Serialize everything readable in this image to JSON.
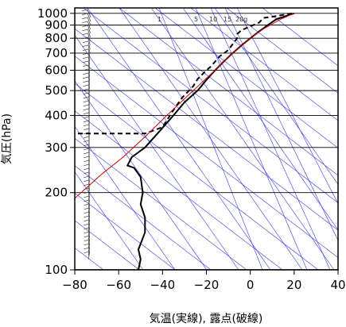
{
  "chart_data": {
    "type": "line",
    "title": "",
    "xlabel": "気温(実線), 露点(破線)",
    "ylabel": "気圧(hPa)",
    "xlim": [
      -80,
      40
    ],
    "ylim": [
      1050,
      100
    ],
    "y_scale": "log",
    "x_ticks": [
      -80,
      -60,
      -40,
      -20,
      0,
      20,
      40
    ],
    "x_tick_labels": [
      "−80",
      "−60",
      "−40",
      "−20",
      "0",
      "20",
      "40"
    ],
    "y_ticks": [
      100,
      200,
      300,
      400,
      500,
      600,
      700,
      800,
      900,
      1000
    ],
    "y_tick_labels": [
      "100",
      "200",
      "300",
      "400",
      "500",
      "600",
      "700",
      "800",
      "900",
      "1000"
    ],
    "mixing_ratio_labels": [
      "1",
      "5",
      "10",
      "15",
      "20g"
    ],
    "grid": true,
    "colors": {
      "temperature": "#000000",
      "dewpoint": "#000000",
      "parcel": "#d00000",
      "reference_lines": "#3a3aee",
      "isobars": "#000000"
    },
    "series": [
      {
        "role": "temperature",
        "style": "solid",
        "points": [
          [
            20,
            1000
          ],
          [
            16,
            975
          ],
          [
            12,
            950
          ],
          [
            8,
            900
          ],
          [
            4,
            850
          ],
          [
            0,
            800
          ],
          [
            -4,
            750
          ],
          [
            -8,
            700
          ],
          [
            -12,
            650
          ],
          [
            -16,
            600
          ],
          [
            -20,
            550
          ],
          [
            -24,
            500
          ],
          [
            -30,
            450
          ],
          [
            -35,
            400
          ],
          [
            -41,
            350
          ],
          [
            -48,
            300
          ],
          [
            -54,
            275
          ],
          [
            -56,
            255
          ],
          [
            -53,
            250
          ],
          [
            -50,
            230
          ],
          [
            -49,
            200
          ],
          [
            -50,
            180
          ],
          [
            -48,
            160
          ],
          [
            -48,
            140
          ],
          [
            -51,
            120
          ],
          [
            -50,
            110
          ],
          [
            -51,
            100
          ]
        ]
      },
      {
        "role": "dewpoint",
        "style": "dashed",
        "points": [
          [
            19,
            1000
          ],
          [
            10,
            970
          ],
          [
            6,
            960
          ],
          [
            4,
            920
          ],
          [
            -4,
            860
          ],
          [
            -6,
            830
          ],
          [
            -6,
            800
          ],
          [
            -10,
            720
          ],
          [
            -14,
            680
          ],
          [
            -18,
            620
          ],
          [
            -20,
            600
          ],
          [
            -24,
            555
          ],
          [
            -26,
            520
          ],
          [
            -31,
            470
          ],
          [
            -35,
            420
          ],
          [
            -40,
            360
          ],
          [
            -48,
            340
          ],
          [
            -80,
            340
          ]
        ]
      },
      {
        "role": "parcel",
        "style": "solid",
        "points": [
          [
            20,
            1000
          ],
          [
            14,
            950
          ],
          [
            6,
            870
          ],
          [
            0,
            800
          ],
          [
            -8,
            700
          ],
          [
            -16,
            600
          ],
          [
            -26,
            500
          ],
          [
            -38,
            400
          ],
          [
            -48,
            330
          ],
          [
            -58,
            275
          ],
          [
            -68,
            235
          ],
          [
            -80,
            190
          ]
        ]
      }
    ]
  }
}
